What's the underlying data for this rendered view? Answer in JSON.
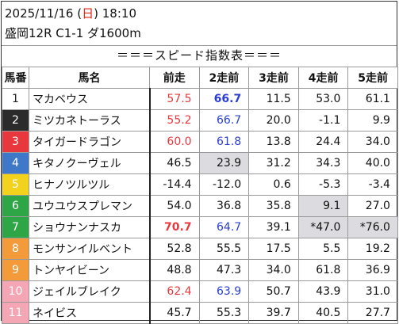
{
  "header": {
    "date": "2025/11/16",
    "weekday_open": "(",
    "weekday": "日",
    "weekday_close": ")",
    "time": "18:10",
    "race_info": "盛岡12R C1-1 ダ1600m"
  },
  "section_title": "＝＝＝スピード指数表＝＝＝",
  "columns": [
    "馬番",
    "馬名",
    "前走",
    "2走前",
    "3走前",
    "4走前",
    "5走前"
  ],
  "rows": [
    {
      "no": "1",
      "name": "マカベウス",
      "frame_bg": "#ffffff",
      "frame_fg": "#222222",
      "v": [
        "57.5",
        "66.7",
        "11.5",
        "53.0",
        "61.1"
      ],
      "styles": [
        "red",
        "blue bold",
        "",
        "",
        ""
      ],
      "hl": [
        false,
        false,
        false,
        false,
        false
      ]
    },
    {
      "no": "2",
      "name": "ミツカネトーラス",
      "frame_bg": "#2b2b2b",
      "frame_fg": "#ffffff",
      "v": [
        "55.2",
        "66.7",
        "20.0",
        "-1.1",
        "9.9"
      ],
      "styles": [
        "red",
        "blue",
        "",
        "",
        ""
      ],
      "hl": [
        false,
        false,
        false,
        false,
        false
      ]
    },
    {
      "no": "3",
      "name": "タイガードラゴン",
      "frame_bg": "#e8383d",
      "frame_fg": "#ffffff",
      "v": [
        "60.0",
        "61.8",
        "13.8",
        "24.4",
        "34.0"
      ],
      "styles": [
        "red",
        "blue",
        "",
        "",
        ""
      ],
      "hl": [
        false,
        false,
        false,
        false,
        false
      ]
    },
    {
      "no": "4",
      "name": "キタノクーヴェル",
      "frame_bg": "#3f78c9",
      "frame_fg": "#ffffff",
      "v": [
        "46.5",
        "23.9",
        "31.2",
        "34.3",
        "40.0"
      ],
      "styles": [
        "",
        "",
        "",
        "",
        ""
      ],
      "hl": [
        false,
        true,
        false,
        false,
        false
      ]
    },
    {
      "no": "5",
      "name": "ヒナノツルツル",
      "frame_bg": "#f2d21d",
      "frame_fg": "#ffffff",
      "v": [
        "-14.4",
        "-12.0",
        "0.6",
        "-5.3",
        "-3.4"
      ],
      "styles": [
        "",
        "",
        "",
        "",
        ""
      ],
      "hl": [
        false,
        false,
        false,
        false,
        false
      ]
    },
    {
      "no": "6",
      "name": "ユウユウスプレマン",
      "frame_bg": "#2fa646",
      "frame_fg": "#ffffff",
      "v": [
        "54.0",
        "36.8",
        "35.8",
        "9.1",
        "27.0"
      ],
      "styles": [
        "",
        "",
        "",
        "",
        ""
      ],
      "hl": [
        false,
        false,
        false,
        true,
        false
      ]
    },
    {
      "no": "7",
      "name": "ショウナンナスカ",
      "frame_bg": "#2fa646",
      "frame_fg": "#ffffff",
      "v": [
        "70.7",
        "64.7",
        "39.1",
        "*47.0",
        "*76.0"
      ],
      "styles": [
        "red bold",
        "blue",
        "",
        "",
        ""
      ],
      "hl": [
        false,
        false,
        false,
        true,
        true
      ]
    },
    {
      "no": "8",
      "name": "モンサンイルベント",
      "frame_bg": "#f39a3a",
      "frame_fg": "#ffffff",
      "v": [
        "52.8",
        "55.5",
        "17.5",
        "5.5",
        "19.2"
      ],
      "styles": [
        "",
        "",
        "",
        "",
        ""
      ],
      "hl": [
        false,
        false,
        false,
        false,
        false
      ]
    },
    {
      "no": "9",
      "name": "トンヤイビーン",
      "frame_bg": "#f39a3a",
      "frame_fg": "#ffffff",
      "v": [
        "48.8",
        "47.3",
        "34.0",
        "61.8",
        "36.9"
      ],
      "styles": [
        "",
        "",
        "",
        "",
        ""
      ],
      "hl": [
        false,
        false,
        false,
        false,
        false
      ]
    },
    {
      "no": "10",
      "name": "ジェイルブレイク",
      "frame_bg": "#f5a6b5",
      "frame_fg": "#ffffff",
      "v": [
        "62.4",
        "63.9",
        "50.7",
        "43.9",
        "31.0"
      ],
      "styles": [
        "red",
        "blue",
        "",
        "",
        ""
      ],
      "hl": [
        false,
        false,
        false,
        false,
        false
      ]
    },
    {
      "no": "11",
      "name": "ネイビス",
      "frame_bg": "#f5a6b5",
      "frame_fg": "#ffffff",
      "v": [
        "45.7",
        "55.3",
        "39.7",
        "40.5",
        "27.7"
      ],
      "styles": [
        "",
        "",
        "",
        "",
        ""
      ],
      "hl": [
        false,
        false,
        false,
        false,
        false
      ]
    }
  ]
}
